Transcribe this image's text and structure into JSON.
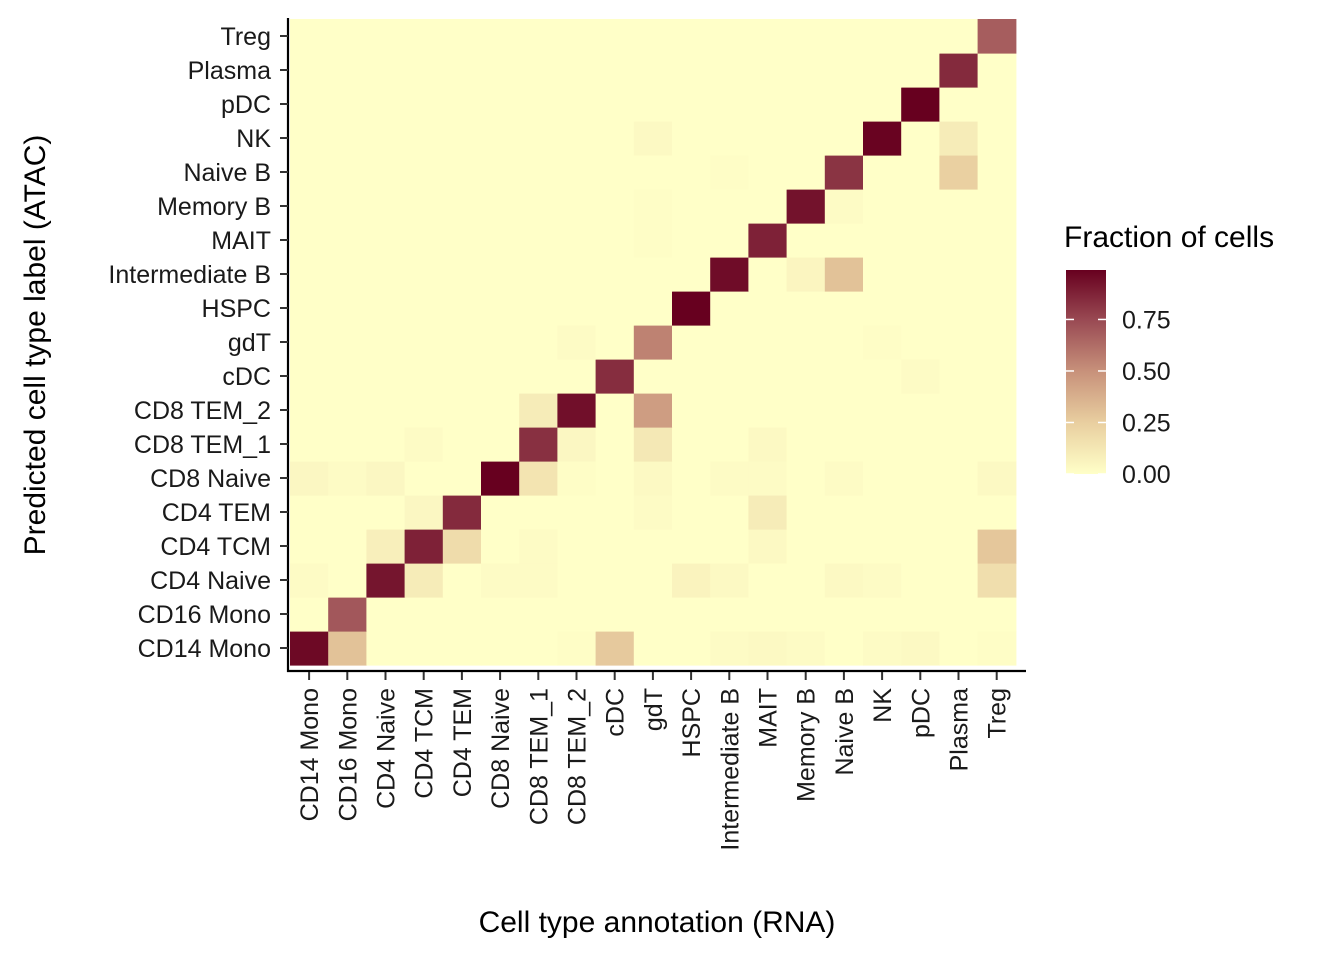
{
  "chart_data": {
    "type": "heatmap",
    "xlabel": "Cell type annotation (RNA)",
    "ylabel": "Predicted cell type label (ATAC)",
    "x_categories": [
      "CD14 Mono",
      "CD16 Mono",
      "CD4 Naive",
      "CD4 TCM",
      "CD4 TEM",
      "CD8 Naive",
      "CD8 TEM_1",
      "CD8 TEM_2",
      "cDC",
      "gdT",
      "HSPC",
      "Intermediate B",
      "MAIT",
      "Memory B",
      "Naive B",
      "NK",
      "pDC",
      "Plasma",
      "Treg"
    ],
    "y_categories": [
      "CD14 Mono",
      "CD16 Mono",
      "CD4 Naive",
      "CD4 TCM",
      "CD4 TEM",
      "CD8 Naive",
      "CD8 TEM_1",
      "CD8 TEM_2",
      "cDC",
      "gdT",
      "HSPC",
      "Intermediate B",
      "MAIT",
      "Memory B",
      "Naive B",
      "NK",
      "pDC",
      "Plasma",
      "Treg"
    ],
    "values": [
      [
        0.96,
        0.3,
        0,
        0,
        0,
        0,
        0,
        0.01,
        0.27,
        0,
        0,
        0.02,
        0.03,
        0.02,
        0,
        0.02,
        0.03,
        0,
        0.01
      ],
      [
        0,
        0.7,
        0,
        0,
        0,
        0,
        0,
        0,
        0,
        0,
        0,
        0,
        0,
        0,
        0,
        0,
        0,
        0,
        0
      ],
      [
        0.02,
        0,
        0.92,
        0.1,
        0,
        0.02,
        0.02,
        0,
        0,
        0,
        0.06,
        0.03,
        0,
        0,
        0.03,
        0.02,
        0,
        0,
        0.17
      ],
      [
        0,
        0,
        0.08,
        0.88,
        0.18,
        0,
        0.02,
        0,
        0,
        0,
        0,
        0,
        0.03,
        0,
        0,
        0,
        0,
        0,
        0.28
      ],
      [
        0,
        0,
        0,
        0.04,
        0.85,
        0,
        0,
        0,
        0,
        0.02,
        0,
        0,
        0.1,
        0,
        0,
        0,
        0,
        0,
        0
      ],
      [
        0.04,
        0.02,
        0.04,
        0,
        0,
        0.99,
        0.14,
        0.01,
        0,
        0.03,
        0,
        0.02,
        0.02,
        0,
        0.02,
        0,
        0,
        0,
        0.03
      ],
      [
        0,
        0,
        0,
        0.02,
        0,
        0,
        0.83,
        0.04,
        0,
        0.12,
        0,
        0,
        0.03,
        0,
        0,
        0,
        0,
        0,
        0
      ],
      [
        0,
        0,
        0,
        0,
        0,
        0,
        0.1,
        0.94,
        0,
        0.45,
        0,
        0,
        0,
        0,
        0,
        0,
        0,
        0,
        0
      ],
      [
        0,
        0,
        0,
        0,
        0,
        0,
        0,
        0,
        0.84,
        0,
        0,
        0,
        0,
        0,
        0,
        0,
        0.02,
        0,
        0
      ],
      [
        0,
        0,
        0,
        0,
        0,
        0,
        0,
        0.02,
        0,
        0.55,
        0,
        0,
        0,
        0,
        0,
        0.01,
        0,
        0,
        0
      ],
      [
        0,
        0,
        0,
        0,
        0,
        0,
        0,
        0,
        0,
        0,
        0.99,
        0,
        0,
        0,
        0,
        0,
        0,
        0,
        0
      ],
      [
        0,
        0,
        0,
        0,
        0,
        0,
        0,
        0,
        0,
        0,
        0,
        0.95,
        0,
        0.05,
        0.3,
        0,
        0,
        0,
        0
      ],
      [
        0,
        0,
        0,
        0,
        0,
        0,
        0,
        0,
        0,
        0.01,
        0,
        0,
        0.88,
        0,
        0,
        0,
        0,
        0,
        0
      ],
      [
        0,
        0,
        0,
        0,
        0,
        0,
        0,
        0,
        0,
        0.01,
        0,
        0,
        0,
        0.93,
        0.02,
        0,
        0,
        0,
        0
      ],
      [
        0,
        0,
        0,
        0,
        0,
        0,
        0,
        0,
        0,
        0,
        0,
        0.01,
        0,
        0,
        0.82,
        0,
        0,
        0.24,
        0
      ],
      [
        0,
        0,
        0,
        0,
        0,
        0,
        0,
        0,
        0,
        0.03,
        0,
        0,
        0,
        0,
        0,
        0.98,
        0,
        0.1,
        0
      ],
      [
        0,
        0,
        0,
        0,
        0,
        0,
        0,
        0,
        0,
        0,
        0,
        0,
        0,
        0,
        0,
        0,
        0.99,
        0,
        0
      ],
      [
        0,
        0,
        0,
        0,
        0,
        0,
        0,
        0,
        0,
        0,
        0,
        0,
        0,
        0,
        0,
        0,
        0,
        0.85,
        0
      ],
      [
        0,
        0,
        0,
        0,
        0,
        0,
        0,
        0,
        0,
        0,
        0,
        0,
        0,
        0,
        0,
        0,
        0,
        0,
        0.68
      ]
    ],
    "legend": {
      "title": "Fraction of cells",
      "placement": "right",
      "ticks": [
        0.0,
        0.25,
        0.5,
        0.75
      ],
      "tick_labels": [
        "0.00",
        "0.25",
        "0.50",
        "0.75"
      ],
      "range": [
        0,
        0.99
      ],
      "colors": [
        "#FFFFC8",
        "#E9CFA0",
        "#C8927B",
        "#9A4B54",
        "#67001F"
      ]
    },
    "grid": false
  }
}
